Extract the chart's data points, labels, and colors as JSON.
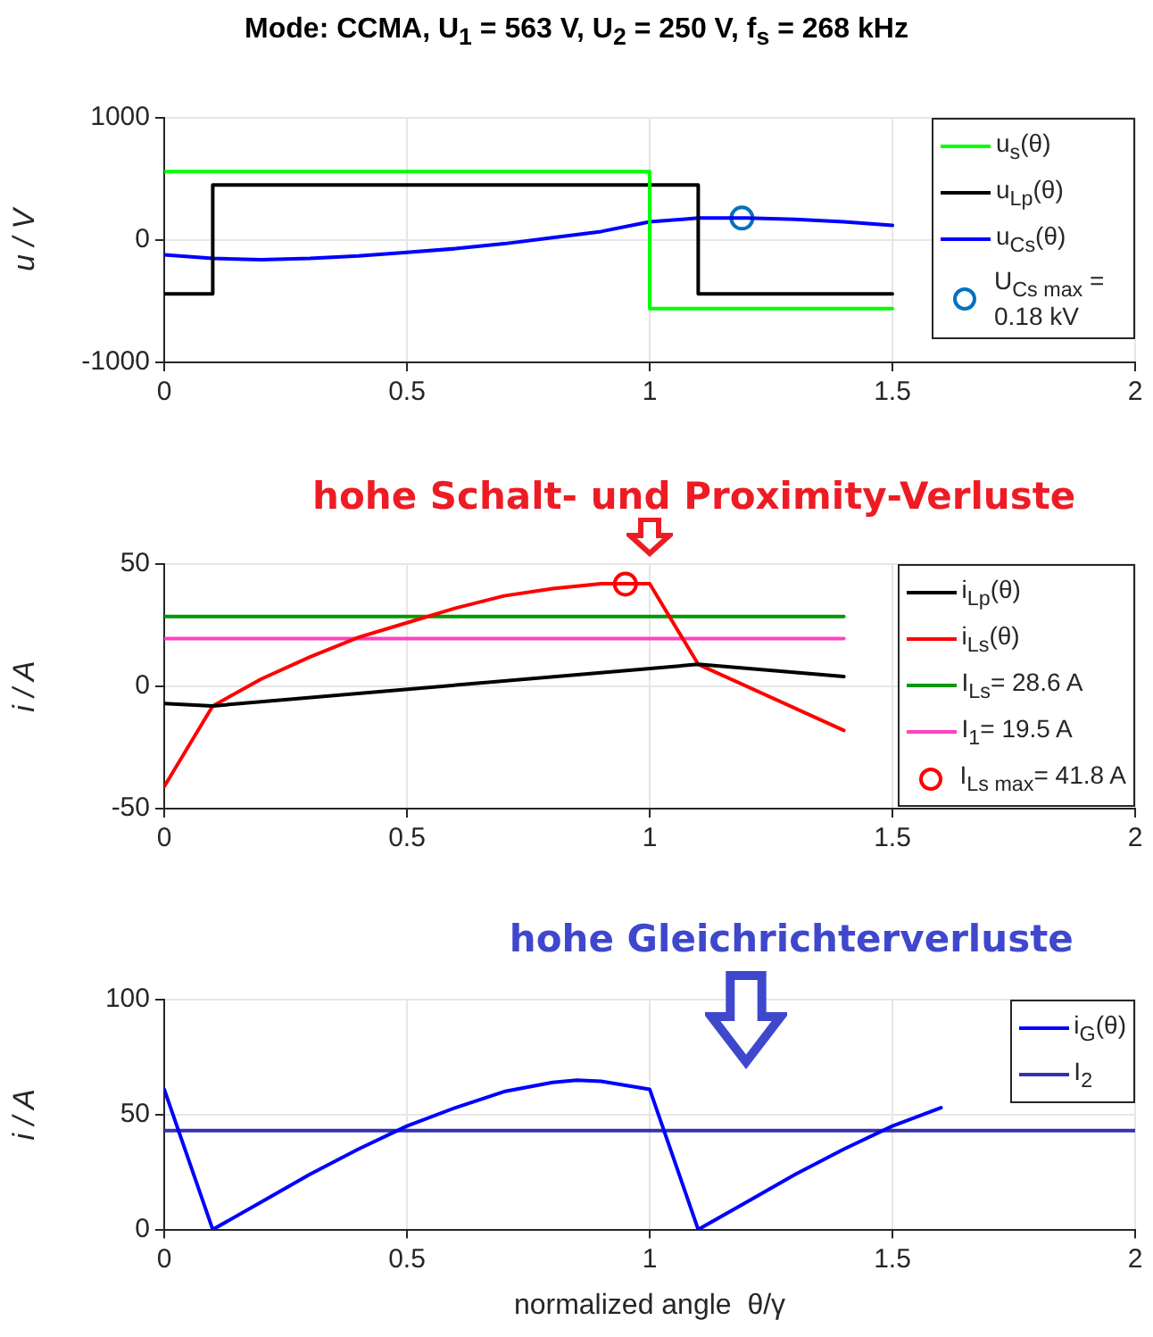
{
  "chart_data": [
    {
      "type": "line",
      "title": "Mode: CCMA, U$_{1}$ = 563 V, U$_{2}$ = 250 V, f$_{s}$ = 268 kHz",
      "ylabel": "u / V",
      "xlim": [
        0,
        2
      ],
      "ylim": [
        -1000,
        1000
      ],
      "xticks": [
        0,
        0.5,
        1,
        1.5,
        2
      ],
      "yticks": [
        -1000,
        0,
        1000
      ],
      "grid": true,
      "legend": "top right",
      "series": [
        {
          "name": "u$_{s}$(θ)",
          "color": "#00ff00",
          "x": [
            0,
            1,
            1,
            1.5
          ],
          "values": [
            560,
            560,
            -560,
            -560
          ]
        },
        {
          "name": "u$_{Lp}$(θ)",
          "color": "#000000",
          "x": [
            0,
            0.1,
            0.1,
            1.1,
            1.1,
            1.5
          ],
          "values": [
            -440,
            -440,
            450,
            450,
            -440,
            -440
          ]
        },
        {
          "name": "u$_{Cs}$(θ)",
          "color": "#0000ff",
          "x": [
            0,
            0.1,
            0.2,
            0.3,
            0.4,
            0.5,
            0.6,
            0.7,
            0.8,
            0.9,
            1.0,
            1.1,
            1.2,
            1.3,
            1.4,
            1.5
          ],
          "values": [
            -120,
            -150,
            -160,
            -150,
            -130,
            -100,
            -70,
            -30,
            20,
            70,
            150,
            180,
            180,
            170,
            150,
            120
          ]
        },
        {
          "type": "scatter",
          "marker": "circle",
          "name": "U$_{Cs max}$ = 0.18 kV",
          "color": "#0072bd",
          "x": [
            1.19
          ],
          "values": [
            180
          ]
        }
      ]
    },
    {
      "type": "line",
      "ylabel": "i / A",
      "xlim": [
        0,
        2
      ],
      "ylim": [
        -50,
        50
      ],
      "xticks": [
        0,
        0.5,
        1,
        1.5,
        2
      ],
      "yticks": [
        -50,
        0,
        50
      ],
      "grid": true,
      "legend": "top right",
      "annotations": [
        "hohe Schalt- und Proximity-Verluste"
      ],
      "series": [
        {
          "name": "i$_{Lp}$(θ)",
          "color": "#000000",
          "x": [
            0,
            0.1,
            1.1,
            1.4
          ],
          "values": [
            -7,
            -8,
            9,
            4
          ]
        },
        {
          "name": "i$_{Ls}$(θ)",
          "color": "#ff0000",
          "x": [
            0,
            0.1,
            0.2,
            0.3,
            0.4,
            0.5,
            0.6,
            0.7,
            0.8,
            0.9,
            1.0,
            1.1,
            1.4
          ],
          "values": [
            -41,
            -8,
            3,
            12,
            20,
            26,
            32,
            37,
            40,
            42,
            42,
            9,
            -18
          ]
        },
        {
          "name": "I$_{Ls}$= 28.6 A",
          "color": "#009900",
          "x": [
            0,
            1.4
          ],
          "values": [
            28.6,
            28.6
          ]
        },
        {
          "name": "I$_{1}$= 19.5 A",
          "color": "#ff40c0",
          "x": [
            0,
            1.4
          ],
          "values": [
            19.5,
            19.5
          ]
        },
        {
          "type": "scatter",
          "marker": "circle",
          "name": "I$_{Ls max}$= 41.8 A",
          "color": "#ff0000",
          "x": [
            0.95
          ],
          "values": [
            41.8
          ]
        }
      ]
    },
    {
      "type": "line",
      "xlabel": "normalized angle  θ/γ",
      "ylabel": "i / A",
      "xlim": [
        0,
        2
      ],
      "ylim": [
        0,
        100
      ],
      "xticks": [
        0,
        0.5,
        1,
        1.5,
        2
      ],
      "yticks": [
        0,
        50,
        100
      ],
      "grid": true,
      "legend": "top right",
      "annotations": [
        "hohe Gleichrichterverluste"
      ],
      "series": [
        {
          "name": "i$_{G}$(θ)",
          "color": "#0000ff",
          "x": [
            0,
            0.1,
            0.2,
            0.3,
            0.4,
            0.5,
            0.6,
            0.7,
            0.8,
            0.85,
            0.9,
            1.0,
            1.1,
            1.2,
            1.3,
            1.4,
            1.5,
            1.6
          ],
          "values": [
            61,
            0,
            12,
            24,
            35,
            45,
            53,
            60,
            64,
            65,
            64.5,
            61,
            0,
            12,
            24,
            35,
            45,
            53
          ]
        },
        {
          "name": "I$_{2}$",
          "color": "#3333aa",
          "x": [
            0,
            2
          ],
          "values": [
            43,
            43
          ]
        }
      ]
    }
  ]
}
